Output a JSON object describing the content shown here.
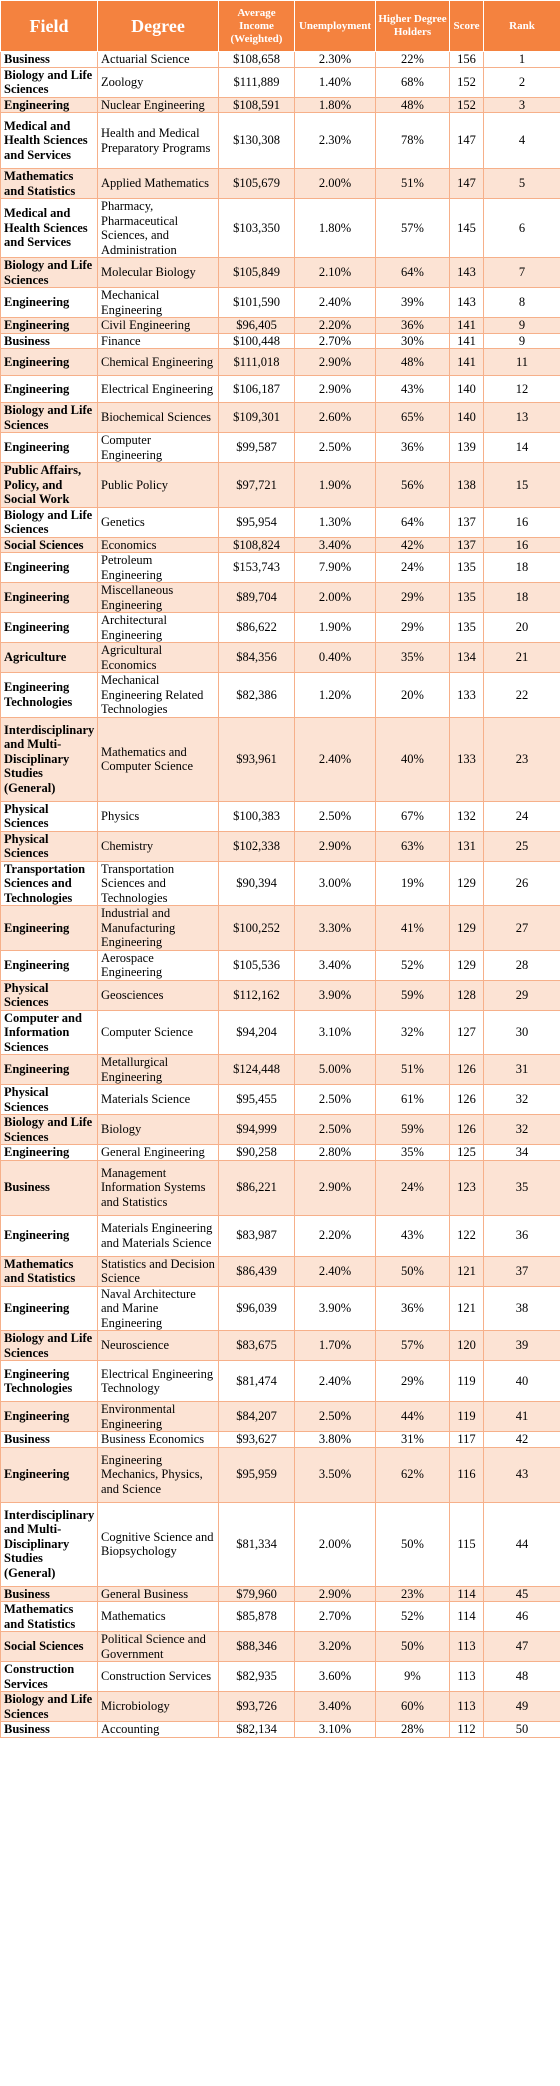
{
  "headers": [
    "Field",
    "Degree",
    "Average Income (Weighted)",
    "Unemployment",
    "Higher Degree Holders",
    "Score",
    "Rank"
  ],
  "rows": [
    {
      "field": "Business",
      "degree": "Actuarial Science",
      "income": "$108,658",
      "unemployment": "2.30%",
      "higher": "22%",
      "score": "156",
      "rank": "1"
    },
    {
      "field": "Biology and Life Sciences",
      "degree": "Zoology",
      "income": "$111,889",
      "unemployment": "1.40%",
      "higher": "68%",
      "score": "152",
      "rank": "2"
    },
    {
      "field": "Engineering",
      "degree": "Nuclear Engineering",
      "income": "$108,591",
      "unemployment": "1.80%",
      "higher": "48%",
      "score": "152",
      "rank": "3"
    },
    {
      "field": "Medical and Health Sciences and Services",
      "degree": "Health and Medical Preparatory Programs",
      "income": "$130,308",
      "unemployment": "2.30%",
      "higher": "78%",
      "score": "147",
      "rank": "4"
    },
    {
      "field": "Mathematics and Statistics",
      "degree": "Applied Mathematics",
      "income": "$105,679",
      "unemployment": "2.00%",
      "higher": "51%",
      "score": "147",
      "rank": "5"
    },
    {
      "field": "Medical and Health Sciences and Services",
      "degree": "Pharmacy, Pharmaceutical Sciences, and Administration",
      "income": "$103,350",
      "unemployment": "1.80%",
      "higher": "57%",
      "score": "145",
      "rank": "6"
    },
    {
      "field": "Biology and Life Sciences",
      "degree": "Molecular Biology",
      "income": "$105,849",
      "unemployment": "2.10%",
      "higher": "64%",
      "score": "143",
      "rank": "7"
    },
    {
      "field": "Engineering",
      "degree": "Mechanical Engineering",
      "income": "$101,590",
      "unemployment": "2.40%",
      "higher": "39%",
      "score": "143",
      "rank": "8"
    },
    {
      "field": "Engineering",
      "degree": "Civil Engineering",
      "income": "$96,405",
      "unemployment": "2.20%",
      "higher": "36%",
      "score": "141",
      "rank": "9"
    },
    {
      "field": "Business",
      "degree": "Finance",
      "income": "$100,448",
      "unemployment": "2.70%",
      "higher": "30%",
      "score": "141",
      "rank": "9"
    },
    {
      "field": "Engineering",
      "degree": "Chemical Engineering",
      "income": "$111,018",
      "unemployment": "2.90%",
      "higher": "48%",
      "score": "141",
      "rank": "11"
    },
    {
      "field": "Engineering",
      "degree": "Electrical Engineering",
      "income": "$106,187",
      "unemployment": "2.90%",
      "higher": "43%",
      "score": "140",
      "rank": "12"
    },
    {
      "field": "Biology and Life Sciences",
      "degree": "Biochemical Sciences",
      "income": "$109,301",
      "unemployment": "2.60%",
      "higher": "65%",
      "score": "140",
      "rank": "13"
    },
    {
      "field": "Engineering",
      "degree": "Computer Engineering",
      "income": "$99,587",
      "unemployment": "2.50%",
      "higher": "36%",
      "score": "139",
      "rank": "14"
    },
    {
      "field": "Public Affairs, Policy, and Social Work",
      "degree": "Public Policy",
      "income": "$97,721",
      "unemployment": "1.90%",
      "higher": "56%",
      "score": "138",
      "rank": "15"
    },
    {
      "field": "Biology and Life Sciences",
      "degree": "Genetics",
      "income": "$95,954",
      "unemployment": "1.30%",
      "higher": "64%",
      "score": "137",
      "rank": "16"
    },
    {
      "field": "Social Sciences",
      "degree": "Economics",
      "income": "$108,824",
      "unemployment": "3.40%",
      "higher": "42%",
      "score": "137",
      "rank": "16"
    },
    {
      "field": "Engineering",
      "degree": "Petroleum Engineering",
      "income": "$153,743",
      "unemployment": "7.90%",
      "higher": "24%",
      "score": "135",
      "rank": "18"
    },
    {
      "field": "Engineering",
      "degree": "Miscellaneous Engineering",
      "income": "$89,704",
      "unemployment": "2.00%",
      "higher": "29%",
      "score": "135",
      "rank": "18"
    },
    {
      "field": "Engineering",
      "degree": "Architectural Engineering",
      "income": "$86,622",
      "unemployment": "1.90%",
      "higher": "29%",
      "score": "135",
      "rank": "20"
    },
    {
      "field": "Agriculture",
      "degree": "Agricultural Economics",
      "income": "$84,356",
      "unemployment": "0.40%",
      "higher": "35%",
      "score": "134",
      "rank": "21"
    },
    {
      "field": "Engineering Technologies",
      "degree": "Mechanical Engineering Related Technologies",
      "income": "$82,386",
      "unemployment": "1.20%",
      "higher": "20%",
      "score": "133",
      "rank": "22"
    },
    {
      "field": "Interdisciplinary and Multi-Disciplinary Studies (General)",
      "degree": "Mathematics and Computer Science",
      "income": "$93,961",
      "unemployment": "2.40%",
      "higher": "40%",
      "score": "133",
      "rank": "23"
    },
    {
      "field": "Physical Sciences",
      "degree": "Physics",
      "income": "$100,383",
      "unemployment": "2.50%",
      "higher": "67%",
      "score": "132",
      "rank": "24"
    },
    {
      "field": "Physical Sciences",
      "degree": "Chemistry",
      "income": "$102,338",
      "unemployment": "2.90%",
      "higher": "63%",
      "score": "131",
      "rank": "25"
    },
    {
      "field": "Transportation Sciences and Technologies",
      "degree": "Transportation Sciences and Technologies",
      "income": "$90,394",
      "unemployment": "3.00%",
      "higher": "19%",
      "score": "129",
      "rank": "26"
    },
    {
      "field": "Engineering",
      "degree": "Industrial and Manufacturing Engineering",
      "income": "$100,252",
      "unemployment": "3.30%",
      "higher": "41%",
      "score": "129",
      "rank": "27"
    },
    {
      "field": "Engineering",
      "degree": "Aerospace Engineering",
      "income": "$105,536",
      "unemployment": "3.40%",
      "higher": "52%",
      "score": "129",
      "rank": "28"
    },
    {
      "field": "Physical Sciences",
      "degree": "Geosciences",
      "income": "$112,162",
      "unemployment": "3.90%",
      "higher": "59%",
      "score": "128",
      "rank": "29"
    },
    {
      "field": "Computer and Information Sciences",
      "degree": "Computer Science",
      "income": "$94,204",
      "unemployment": "3.10%",
      "higher": "32%",
      "score": "127",
      "rank": "30"
    },
    {
      "field": "Engineering",
      "degree": "Metallurgical Engineering",
      "income": "$124,448",
      "unemployment": "5.00%",
      "higher": "51%",
      "score": "126",
      "rank": "31"
    },
    {
      "field": "Physical Sciences",
      "degree": "Materials Science",
      "income": "$95,455",
      "unemployment": "2.50%",
      "higher": "61%",
      "score": "126",
      "rank": "32"
    },
    {
      "field": "Biology and Life Sciences",
      "degree": "Biology",
      "income": "$94,999",
      "unemployment": "2.50%",
      "higher": "59%",
      "score": "126",
      "rank": "32"
    },
    {
      "field": "Engineering",
      "degree": "General Engineering",
      "income": "$90,258",
      "unemployment": "2.80%",
      "higher": "35%",
      "score": "125",
      "rank": "34"
    },
    {
      "field": "Business",
      "degree": "Management Information Systems and Statistics",
      "income": "$86,221",
      "unemployment": "2.90%",
      "higher": "24%",
      "score": "123",
      "rank": "35"
    },
    {
      "field": "Engineering",
      "degree": "Materials Engineering and Materials Science",
      "income": "$83,987",
      "unemployment": "2.20%",
      "higher": "43%",
      "score": "122",
      "rank": "36"
    },
    {
      "field": "Mathematics and Statistics",
      "degree": "Statistics and Decision Science",
      "income": "$86,439",
      "unemployment": "2.40%",
      "higher": "50%",
      "score": "121",
      "rank": "37"
    },
    {
      "field": "Engineering",
      "degree": "Naval Architecture and Marine Engineering",
      "income": "$96,039",
      "unemployment": "3.90%",
      "higher": "36%",
      "score": "121",
      "rank": "38"
    },
    {
      "field": "Biology and Life Sciences",
      "degree": "Neuroscience",
      "income": "$83,675",
      "unemployment": "1.70%",
      "higher": "57%",
      "score": "120",
      "rank": "39"
    },
    {
      "field": "Engineering Technologies",
      "degree": "Electrical Engineering Technology",
      "income": "$81,474",
      "unemployment": "2.40%",
      "higher": "29%",
      "score": "119",
      "rank": "40"
    },
    {
      "field": "Engineering",
      "degree": "Environmental Engineering",
      "income": "$84,207",
      "unemployment": "2.50%",
      "higher": "44%",
      "score": "119",
      "rank": "41"
    },
    {
      "field": "Business",
      "degree": "Business Economics",
      "income": "$93,627",
      "unemployment": "3.80%",
      "higher": "31%",
      "score": "117",
      "rank": "42"
    },
    {
      "field": "Engineering",
      "degree": "Engineering Mechanics, Physics, and Science",
      "income": "$95,959",
      "unemployment": "3.50%",
      "higher": "62%",
      "score": "116",
      "rank": "43"
    },
    {
      "field": "Interdisciplinary and Multi-Disciplinary Studies (General)",
      "degree": "Cognitive Science and Biopsychology",
      "income": "$81,334",
      "unemployment": "2.00%",
      "higher": "50%",
      "score": "115",
      "rank": "44"
    },
    {
      "field": "Business",
      "degree": "General Business",
      "income": "$79,960",
      "unemployment": "2.90%",
      "higher": "23%",
      "score": "114",
      "rank": "45"
    },
    {
      "field": "Mathematics and Statistics",
      "degree": "Mathematics",
      "income": "$85,878",
      "unemployment": "2.70%",
      "higher": "52%",
      "score": "114",
      "rank": "46"
    },
    {
      "field": "Social Sciences",
      "degree": "Political Science and Government",
      "income": "$88,346",
      "unemployment": "3.20%",
      "higher": "50%",
      "score": "113",
      "rank": "47"
    },
    {
      "field": "Construction Services",
      "degree": "Construction Services",
      "income": "$82,935",
      "unemployment": "3.60%",
      "higher": "9%",
      "score": "113",
      "rank": "48"
    },
    {
      "field": "Biology and Life Sciences",
      "degree": "Microbiology",
      "income": "$93,726",
      "unemployment": "3.40%",
      "higher": "60%",
      "score": "113",
      "rank": "49"
    },
    {
      "field": "Business",
      "degree": "Accounting",
      "income": "$82,134",
      "unemployment": "3.10%",
      "higher": "28%",
      "score": "112",
      "rank": "50"
    }
  ]
}
